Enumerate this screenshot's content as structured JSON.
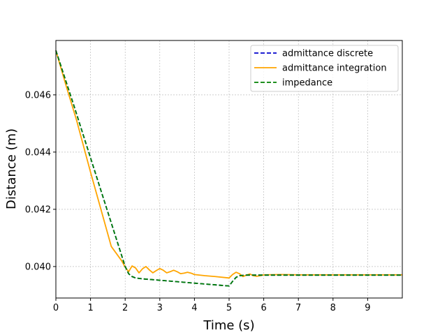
{
  "chart_data": {
    "type": "line",
    "title": "",
    "xlabel": "Time (s)",
    "ylabel": "Distance (m)",
    "xlim": [
      0,
      10
    ],
    "ylim": [
      0.0389,
      0.0479
    ],
    "grid": true,
    "legend_position": "top-right",
    "x_ticks": [
      {
        "value": 0,
        "label": "0"
      },
      {
        "value": 1,
        "label": "1"
      },
      {
        "value": 2,
        "label": "2"
      },
      {
        "value": 3,
        "label": "3"
      },
      {
        "value": 4,
        "label": "4"
      },
      {
        "value": 5,
        "label": "5"
      },
      {
        "value": 6,
        "label": "6"
      },
      {
        "value": 7,
        "label": "7"
      },
      {
        "value": 8,
        "label": "8"
      },
      {
        "value": 9,
        "label": "9"
      }
    ],
    "y_ticks": [
      {
        "value": 0.04,
        "label": "0.040"
      },
      {
        "value": 0.042,
        "label": "0.042"
      },
      {
        "value": 0.044,
        "label": "0.044"
      },
      {
        "value": 0.046,
        "label": "0.046"
      }
    ],
    "series": [
      {
        "name": "admittance discrete",
        "color": "#0000cc",
        "dash": "dashed",
        "x": [
          0,
          0.5,
          1.0,
          1.5,
          2.0,
          2.1,
          2.2,
          2.3,
          2.5,
          3.0,
          3.5,
          4.0,
          4.5,
          5.0,
          5.1,
          5.2,
          5.3,
          5.5,
          6.0,
          7.0,
          8.0,
          9.0,
          10.0
        ],
        "y": [
          0.04755,
          0.0457,
          0.0438,
          0.0419,
          0.04,
          0.03975,
          0.03965,
          0.0396,
          0.03957,
          0.03952,
          0.03947,
          0.03942,
          0.03937,
          0.03932,
          0.03948,
          0.03962,
          0.03968,
          0.0397,
          0.0397,
          0.0397,
          0.0397,
          0.0397,
          0.0397
        ]
      },
      {
        "name": "admittance integration",
        "color": "#ffa500",
        "dash": "solid",
        "x": [
          0,
          0.3,
          0.6,
          1.0,
          1.3,
          1.6,
          1.9,
          2.0,
          2.1,
          2.2,
          2.3,
          2.4,
          2.5,
          2.6,
          2.7,
          2.8,
          2.9,
          3.0,
          3.1,
          3.2,
          3.3,
          3.4,
          3.5,
          3.6,
          3.7,
          3.8,
          3.9,
          4.0,
          4.3,
          4.6,
          5.0,
          5.1,
          5.2,
          5.3,
          5.4,
          5.5,
          5.6,
          5.7,
          5.8,
          5.9,
          6.0,
          6.5,
          7.0,
          8.0,
          9.0,
          10.0
        ],
        "y": [
          0.04755,
          0.0463,
          0.0451,
          0.0433,
          0.042,
          0.0407,
          0.0402,
          0.03998,
          0.03982,
          0.04002,
          0.03995,
          0.03978,
          0.03992,
          0.04,
          0.03988,
          0.03978,
          0.03986,
          0.03993,
          0.03987,
          0.03978,
          0.03982,
          0.03987,
          0.03982,
          0.03975,
          0.03977,
          0.0398,
          0.03977,
          0.03972,
          0.03968,
          0.03965,
          0.0396,
          0.03972,
          0.0398,
          0.03975,
          0.03965,
          0.0397,
          0.03974,
          0.03968,
          0.03966,
          0.03968,
          0.03971,
          0.03972,
          0.03971,
          0.03971,
          0.03971,
          0.03971
        ]
      },
      {
        "name": "impedance",
        "color": "#008000",
        "dash": "dashed",
        "x": [
          0,
          0.5,
          1.0,
          1.5,
          2.0,
          2.1,
          2.2,
          2.3,
          2.5,
          3.0,
          3.5,
          4.0,
          4.5,
          5.0,
          5.1,
          5.2,
          5.3,
          5.5,
          6.0,
          7.0,
          8.0,
          9.0,
          10.0
        ],
        "y": [
          0.04755,
          0.0457,
          0.0438,
          0.0419,
          0.04,
          0.03975,
          0.03965,
          0.0396,
          0.03957,
          0.03952,
          0.03947,
          0.03942,
          0.03937,
          0.03932,
          0.03948,
          0.03962,
          0.03968,
          0.0397,
          0.0397,
          0.0397,
          0.0397,
          0.0397,
          0.0397
        ]
      }
    ]
  }
}
